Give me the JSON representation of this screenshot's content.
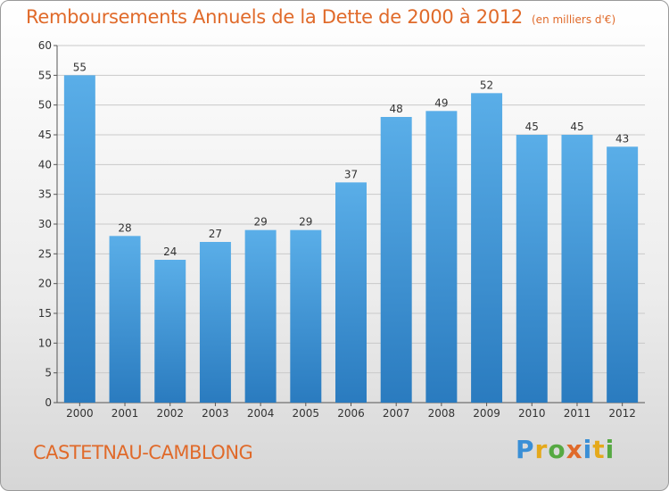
{
  "header": {
    "title": "Remboursements Annuels de la Dette de 2000 à 2012",
    "subtitle": "(en milliers d'€)"
  },
  "footer": {
    "city": "CASTETNAU-CAMBLONG",
    "logo": "Proxiti"
  },
  "colors": {
    "accent": "#e06a2a",
    "bar_top": "#5aaee8",
    "bar_bottom": "#2a7bbf"
  },
  "chart_data": {
    "type": "bar",
    "title": "Remboursements Annuels de la Dette de 2000 à 2012",
    "subtitle": "(en milliers d'€)",
    "categories": [
      "2000",
      "2001",
      "2002",
      "2003",
      "2004",
      "2005",
      "2006",
      "2007",
      "2008",
      "2009",
      "2010",
      "2011",
      "2012"
    ],
    "values": [
      55,
      28,
      24,
      27,
      29,
      29,
      37,
      48,
      49,
      52,
      45,
      45,
      43
    ],
    "ylim": [
      0,
      60
    ],
    "yticks": [
      0,
      5,
      10,
      15,
      20,
      25,
      30,
      35,
      40,
      45,
      50,
      55,
      60
    ],
    "grid": true,
    "data_labels": true
  }
}
